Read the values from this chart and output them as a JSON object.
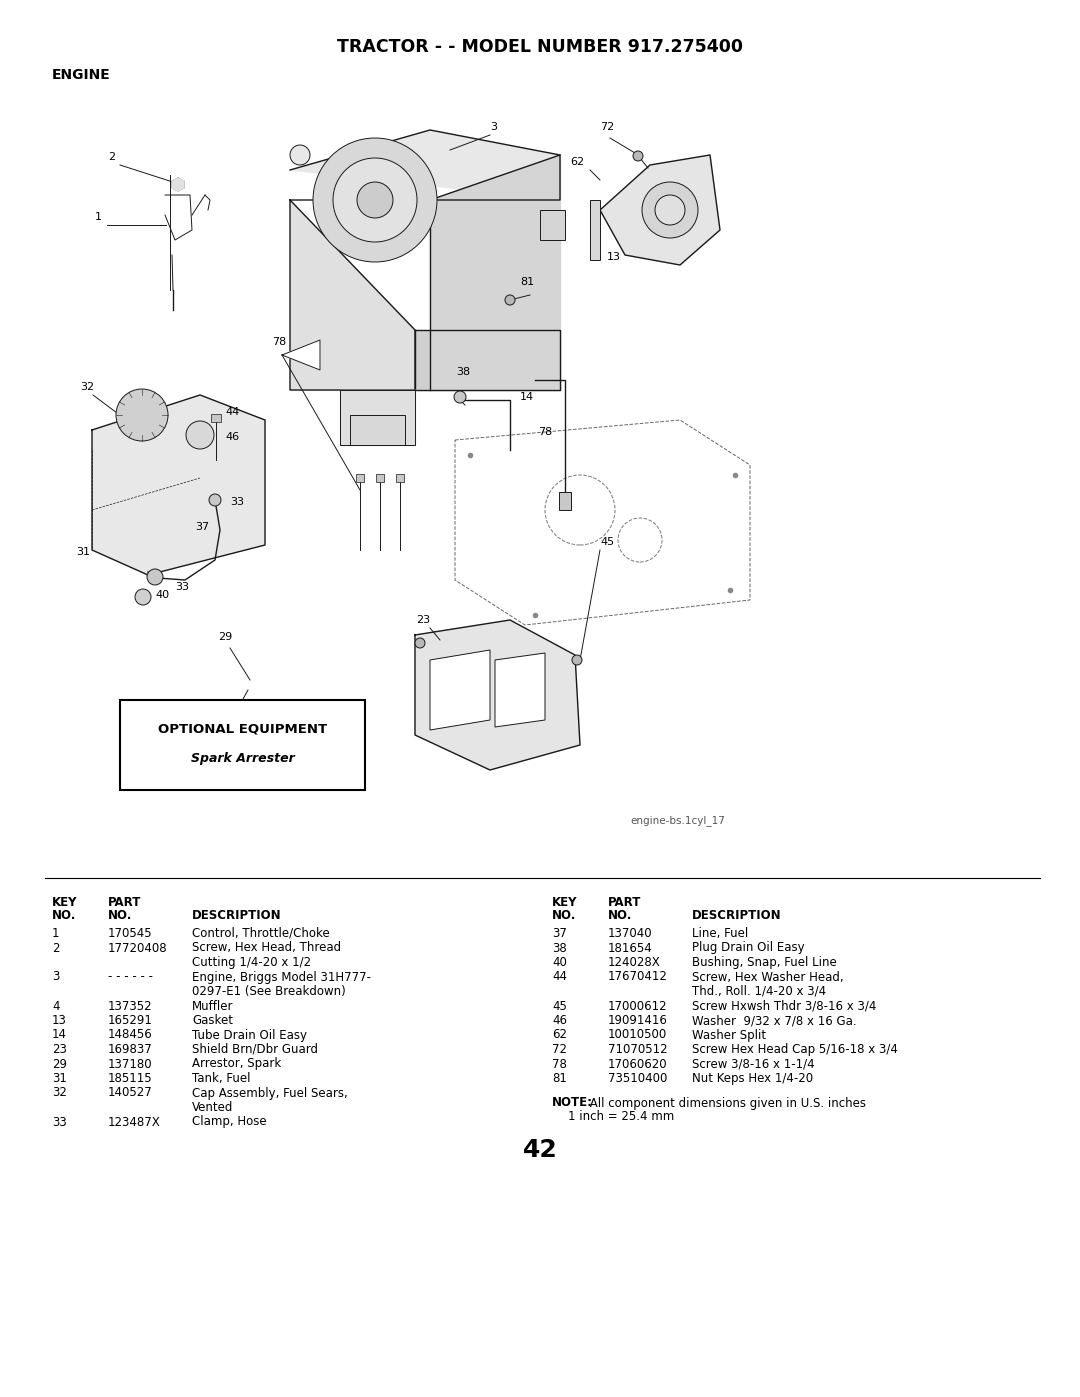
{
  "title": "TRACTOR - - MODEL NUMBER 917.275400",
  "section": "ENGINE",
  "background_color": "#ffffff",
  "title_fontsize": 13,
  "section_fontsize": 10,
  "page_number": "42",
  "optional_equipment_box": {
    "title": "OPTIONAL EQUIPMENT",
    "subtitle": "Spark Arrester"
  },
  "image_credit": "engine-bs.1cyl_17",
  "left_table": {
    "rows": [
      [
        "1",
        "170545",
        "Control, Throttle/Choke",
        false
      ],
      [
        "2",
        "17720408",
        "Screw, Hex Head, Thread",
        true
      ],
      [
        "",
        "",
        "Cutting 1/4-20 x 1/2",
        false
      ],
      [
        "3",
        "- - - - - -",
        "Engine, Briggs Model 31H777-",
        true
      ],
      [
        "",
        "",
        "0297-E1 (See Breakdown)",
        false
      ],
      [
        "4",
        "137352",
        "Muffler",
        false
      ],
      [
        "13",
        "165291",
        "Gasket",
        false
      ],
      [
        "14",
        "148456",
        "Tube Drain Oil Easy",
        false
      ],
      [
        "23",
        "169837",
        "Shield Brn/Dbr Guard",
        false
      ],
      [
        "29",
        "137180",
        "Arrestor, Spark",
        false
      ],
      [
        "31",
        "185115",
        "Tank, Fuel",
        false
      ],
      [
        "32",
        "140527",
        "Cap Assembly, Fuel Sears,",
        true
      ],
      [
        "",
        "",
        "Vented",
        false
      ],
      [
        "33",
        "123487X",
        "Clamp, Hose",
        false
      ]
    ]
  },
  "right_table": {
    "rows": [
      [
        "37",
        "137040",
        "Line, Fuel",
        false
      ],
      [
        "38",
        "181654",
        "Plug Drain Oil Easy",
        false
      ],
      [
        "40",
        "124028X",
        "Bushing, Snap, Fuel Line",
        false
      ],
      [
        "44",
        "17670412",
        "Screw, Hex Washer Head,",
        true
      ],
      [
        "",
        "",
        "Thd., Roll. 1/4-20 x 3/4",
        false
      ],
      [
        "45",
        "17000612",
        "Screw Hxwsh Thdr 3/8-16 x 3/4",
        false
      ],
      [
        "46",
        "19091416",
        "Washer  9/32 x 7/8 x 16 Ga.",
        false
      ],
      [
        "62",
        "10010500",
        "Washer Split",
        false
      ],
      [
        "72",
        "71070512",
        "Screw Hex Head Cap 5/16-18 x 3/4",
        false
      ],
      [
        "78",
        "17060620",
        "Screw 3/8-16 x 1-1/4",
        false
      ],
      [
        "81",
        "73510400",
        "Nut Keps Hex 1/4-20",
        false
      ]
    ]
  },
  "note_bold": "NOTE:",
  "note_regular": " All component dimensions given in U.S. inches",
  "note_line2": "1 inch = 25.4 mm"
}
